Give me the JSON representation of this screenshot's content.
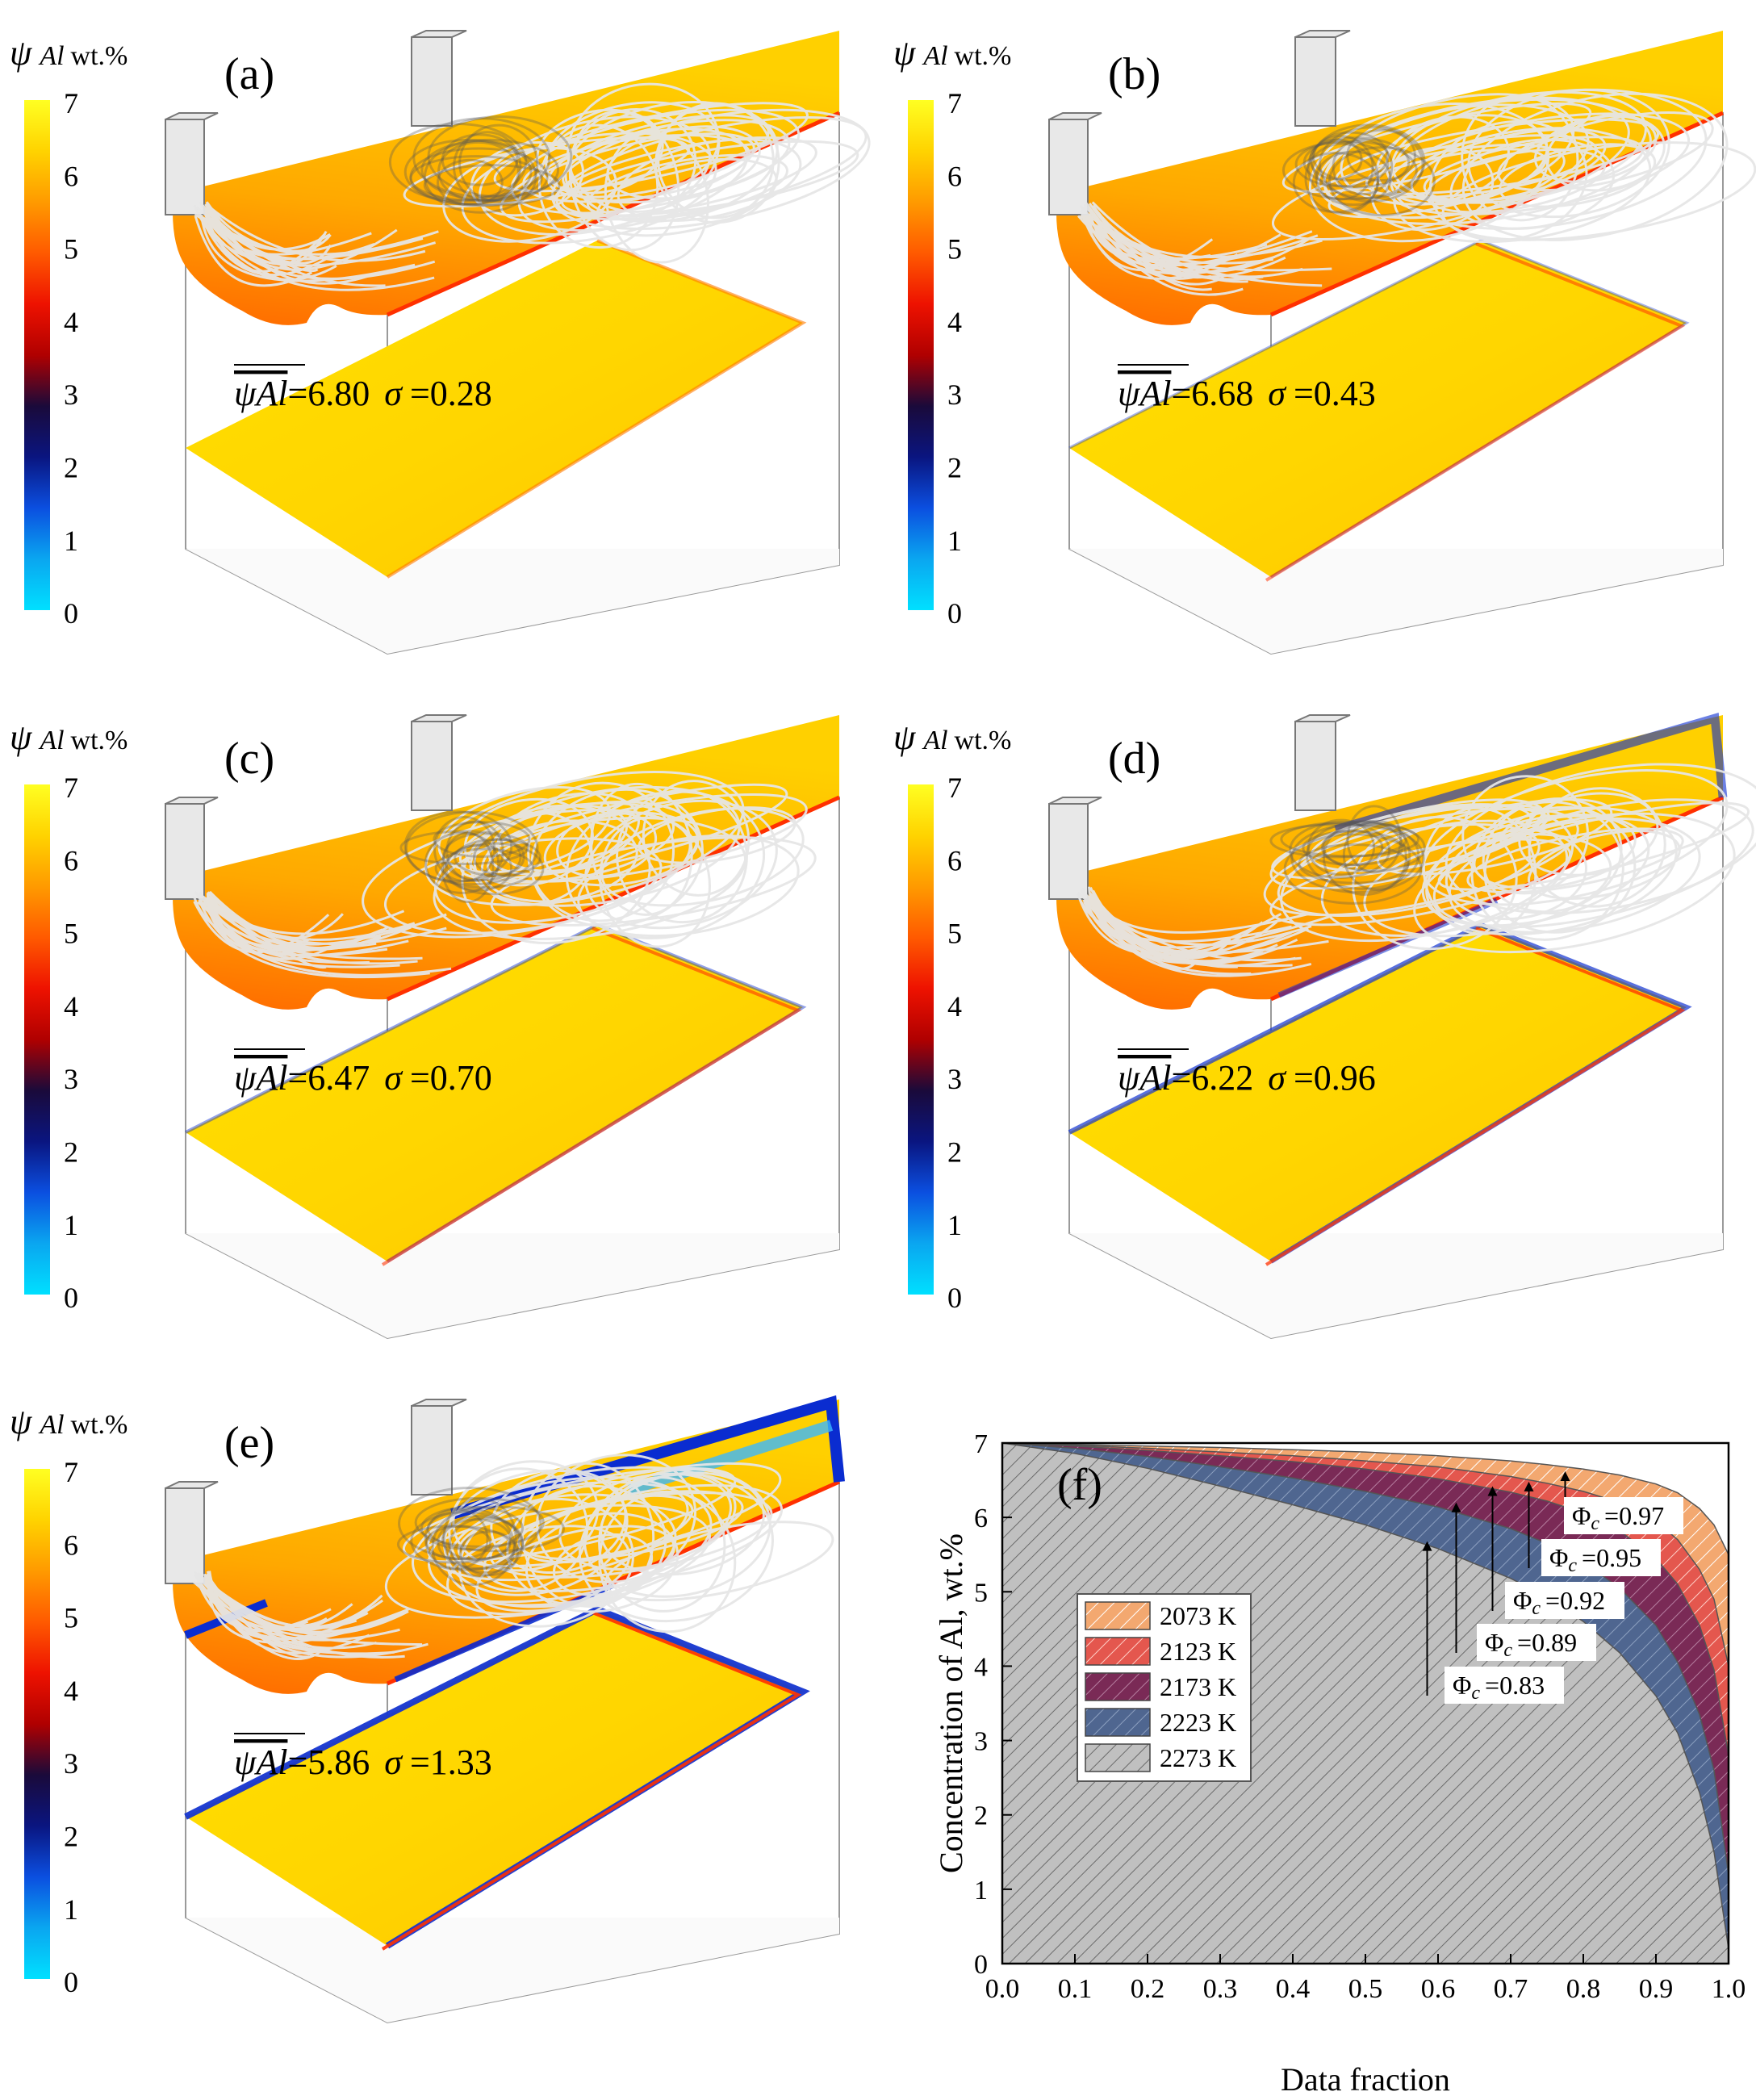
{
  "colorbar": {
    "symbol": "ψ",
    "subscript": "Al",
    "unit": "wt.%",
    "ticks": [
      "7",
      "6",
      "5",
      "4",
      "3",
      "2",
      "1",
      "0"
    ],
    "gradient": [
      "#00e0ff",
      "#0aa6f0",
      "#0b4fe0",
      "#0a1580",
      "#1a0a3a",
      "#b00000",
      "#ee1200",
      "#ff5a00",
      "#ff9a00",
      "#ffd300",
      "#ffff22"
    ]
  },
  "colors": {
    "c2073": "#f3a870",
    "c2123": "#e4574e",
    "c2173": "#7a2a56",
    "c2223": "#4f6690",
    "c2273": "#c0c0c0",
    "stream": "#e6e6e6",
    "yellow": "#ffd400",
    "orange": "#ff8c00"
  },
  "panels": [
    {
      "id": "a",
      "label": "(a)",
      "mean_symbol": "ψAl",
      "mean": "=6.80",
      "sigma_symbol": "σ",
      "sigma": "=0.28",
      "edge_blue": 0.0
    },
    {
      "id": "b",
      "label": "(b)",
      "mean_symbol": "ψAl",
      "mean": "=6.68",
      "sigma_symbol": "σ",
      "sigma": "=0.43",
      "edge_blue": 0.05
    },
    {
      "id": "c",
      "label": "(c)",
      "mean_symbol": "ψAl",
      "mean": "=6.47",
      "sigma_symbol": "σ",
      "sigma": "=0.70",
      "edge_blue": 0.2
    },
    {
      "id": "d",
      "label": "(d)",
      "mean_symbol": "ψAl",
      "mean": "=6.22",
      "sigma_symbol": "σ",
      "sigma": "=0.96",
      "edge_blue": 0.6
    },
    {
      "id": "e",
      "label": "(e)",
      "mean_symbol": "ψAl",
      "mean": "=5.86",
      "sigma_symbol": "σ",
      "sigma": "=1.33",
      "edge_blue": 1.0
    }
  ],
  "chart_data": {
    "type": "area",
    "label": "(f)",
    "xlabel": "Data fraction",
    "ylabel": "Concentration of Al, wt.%",
    "xlim": [
      0.0,
      1.0
    ],
    "ylim": [
      0,
      7
    ],
    "xticks": [
      "0.0",
      "0.1",
      "0.2",
      "0.3",
      "0.4",
      "0.5",
      "0.6",
      "0.7",
      "0.8",
      "0.9",
      "1.0"
    ],
    "yticks": [
      "0",
      "1",
      "2",
      "3",
      "4",
      "5",
      "6",
      "7"
    ],
    "series": [
      {
        "name": "2073 K",
        "key": "c2073",
        "x": [
          0,
          0.1,
          0.2,
          0.3,
          0.4,
          0.5,
          0.6,
          0.7,
          0.75,
          0.8,
          0.85,
          0.9,
          0.93,
          0.96,
          0.98,
          1.0
        ],
        "y": [
          7.0,
          6.98,
          6.96,
          6.94,
          6.91,
          6.88,
          6.83,
          6.76,
          6.71,
          6.65,
          6.57,
          6.45,
          6.33,
          6.12,
          5.9,
          5.5
        ]
      },
      {
        "name": "2123 K",
        "key": "c2123",
        "x": [
          0,
          0.1,
          0.2,
          0.3,
          0.4,
          0.5,
          0.6,
          0.7,
          0.75,
          0.8,
          0.85,
          0.9,
          0.93,
          0.96,
          0.98,
          1.0
        ],
        "y": [
          7.0,
          6.97,
          6.93,
          6.88,
          6.83,
          6.76,
          6.68,
          6.55,
          6.46,
          6.35,
          6.2,
          5.95,
          5.7,
          5.3,
          4.9,
          4.0
        ]
      },
      {
        "name": "2173 K",
        "key": "c2173",
        "x": [
          0,
          0.1,
          0.2,
          0.3,
          0.4,
          0.5,
          0.6,
          0.7,
          0.75,
          0.8,
          0.85,
          0.9,
          0.93,
          0.96,
          0.98,
          1.0
        ],
        "y": [
          7.0,
          6.96,
          6.9,
          6.83,
          6.75,
          6.65,
          6.52,
          6.34,
          6.22,
          6.06,
          5.82,
          5.45,
          5.1,
          4.55,
          3.95,
          2.8
        ]
      },
      {
        "name": "2223 K",
        "key": "c2223",
        "x": [
          0,
          0.1,
          0.2,
          0.3,
          0.4,
          0.5,
          0.6,
          0.7,
          0.75,
          0.8,
          0.85,
          0.9,
          0.93,
          0.96,
          0.98,
          1.0
        ],
        "y": [
          7.0,
          6.93,
          6.82,
          6.68,
          6.53,
          6.35,
          6.14,
          5.85,
          5.65,
          5.4,
          5.05,
          4.55,
          4.05,
          3.35,
          2.6,
          1.2
        ]
      },
      {
        "name": "2273 K",
        "key": "c2273",
        "x": [
          0,
          0.1,
          0.2,
          0.3,
          0.4,
          0.5,
          0.6,
          0.7,
          0.75,
          0.8,
          0.85,
          0.9,
          0.93,
          0.96,
          0.98,
          1.0
        ],
        "y": [
          7.0,
          6.86,
          6.66,
          6.42,
          6.17,
          5.9,
          5.58,
          5.18,
          4.93,
          4.6,
          4.18,
          3.6,
          3.1,
          2.3,
          1.5,
          0.2
        ]
      }
    ],
    "annotations": [
      {
        "text": "=0.97",
        "symbol": "Φ",
        "sub": "c",
        "arrow_x": 0.775,
        "arrow_y": 6.62
      },
      {
        "text": "=0.95",
        "symbol": "Φ",
        "sub": "c",
        "arrow_x": 0.725,
        "arrow_y": 6.48
      },
      {
        "text": "=0.92",
        "symbol": "Φ",
        "sub": "c",
        "arrow_x": 0.675,
        "arrow_y": 6.42
      },
      {
        "text": "=0.89",
        "symbol": "Φ",
        "sub": "c",
        "arrow_x": 0.625,
        "arrow_y": 6.2
      },
      {
        "text": "=0.83",
        "symbol": "Φ",
        "sub": "c",
        "arrow_x": 0.585,
        "arrow_y": 5.68
      }
    ]
  }
}
